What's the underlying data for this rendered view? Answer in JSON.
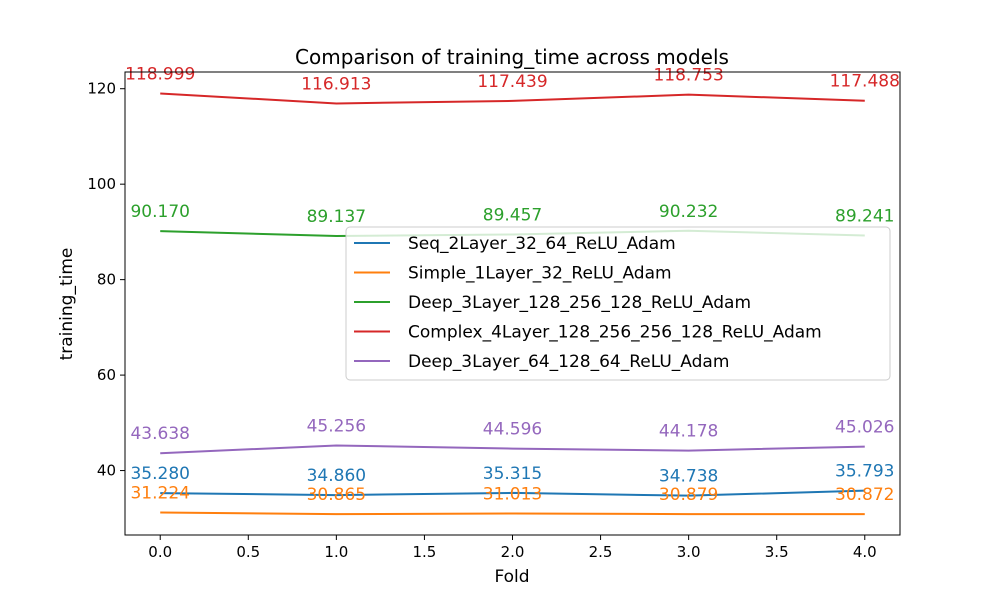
{
  "chart_data": {
    "type": "line",
    "title": "Comparison of training_time across models",
    "xlabel": "Fold",
    "ylabel": "training_time",
    "x": [
      0,
      1,
      2,
      3,
      4
    ],
    "xlim": [
      -0.2,
      4.2
    ],
    "ylim": [
      26.5,
      123.5
    ],
    "xticks": [
      0.0,
      0.5,
      1.0,
      1.5,
      2.0,
      2.5,
      3.0,
      3.5,
      4.0
    ],
    "xtick_labels": [
      "0.0",
      "0.5",
      "1.0",
      "1.5",
      "2.0",
      "2.5",
      "3.0",
      "3.5",
      "4.0"
    ],
    "yticks": [
      40,
      60,
      80,
      100,
      120
    ],
    "ytick_labels": [
      "40",
      "60",
      "80",
      "100",
      "120"
    ],
    "grid": false,
    "legend_position": "center-right",
    "series": [
      {
        "name": "Seq_2Layer_32_64_ReLU_Adam",
        "color": "#1f77b4",
        "values": [
          35.28,
          34.86,
          35.315,
          34.738,
          35.793
        ],
        "labels": [
          "35.280",
          "34.860",
          "35.315",
          "34.738",
          "35.793"
        ]
      },
      {
        "name": "Simple_1Layer_32_ReLU_Adam",
        "color": "#ff7f0e",
        "values": [
          31.224,
          30.865,
          31.013,
          30.879,
          30.872
        ],
        "labels": [
          "31.224",
          "30.865",
          "31.013",
          "30.879",
          "30.872"
        ]
      },
      {
        "name": "Deep_3Layer_128_256_128_ReLU_Adam",
        "color": "#2ca02c",
        "values": [
          90.17,
          89.137,
          89.457,
          90.232,
          89.241
        ],
        "labels": [
          "90.170",
          "89.137",
          "89.457",
          "90.232",
          "89.241"
        ]
      },
      {
        "name": "Complex_4Layer_128_256_256_128_ReLU_Adam",
        "color": "#d62728",
        "values": [
          118.999,
          116.913,
          117.439,
          118.753,
          117.488
        ],
        "labels": [
          "118.999",
          "116.913",
          "117.439",
          "118.753",
          "117.488"
        ]
      },
      {
        "name": "Deep_3Layer_64_128_64_ReLU_Adam",
        "color": "#9467bd",
        "values": [
          43.638,
          45.256,
          44.596,
          44.178,
          45.026
        ],
        "labels": [
          "43.638",
          "45.256",
          "44.596",
          "44.178",
          "45.026"
        ]
      }
    ]
  }
}
